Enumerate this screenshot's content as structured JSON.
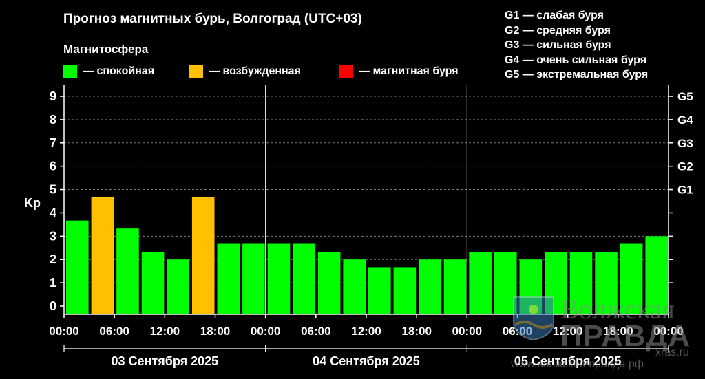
{
  "header": {
    "title": "Прогноз магнитных бурь, Волгоград (UTC+03)",
    "subtitle": "Магнитосфера"
  },
  "legend": [
    {
      "label": "— спокойная",
      "color": "#00ff00"
    },
    {
      "label": "— возбужденная",
      "color": "#ffc000"
    },
    {
      "label": "— магнитная буря",
      "color": "#ff0000"
    }
  ],
  "g_scale": [
    "G1 — слабая буря",
    "G2 — средняя буря",
    "G3 — сильная буря",
    "G4 — очень сильная буря",
    "G5 — экстремальная буря"
  ],
  "watermark": {
    "title": "Волжская",
    "brand": "ПРАВДА",
    "site": "www.волжская-правда.рф",
    "site2": "xras.ru"
  },
  "chart_data": {
    "type": "bar",
    "ylabel": "Kp",
    "ylim": [
      0,
      9
    ],
    "yticks": [
      0,
      1,
      2,
      3,
      4,
      5,
      6,
      7,
      8,
      9
    ],
    "right_ticks": [
      {
        "value": 5,
        "label": "G1"
      },
      {
        "value": 6,
        "label": "G2"
      },
      {
        "value": 7,
        "label": "G3"
      },
      {
        "value": 8,
        "label": "G4"
      },
      {
        "value": 9,
        "label": "G5"
      }
    ],
    "x_tick_labels": [
      "00:00",
      "06:00",
      "12:00",
      "18:00",
      "00:00",
      "06:00",
      "12:00",
      "18:00",
      "00:00",
      "06:00",
      "12:00",
      "18:00",
      "00:00"
    ],
    "days": [
      "03 Сентября 2025",
      "04 Сентября 2025",
      "05 Сентября 2025"
    ],
    "values": [
      3.67,
      4.67,
      3.33,
      2.33,
      2.0,
      4.67,
      2.67,
      2.67,
      2.67,
      2.67,
      2.33,
      2.0,
      1.67,
      1.67,
      2.0,
      2.0,
      2.33,
      2.33,
      2.0,
      2.33,
      2.33,
      2.33,
      2.67,
      3.0
    ],
    "colors": [
      "#00ff00",
      "#ffc000",
      "#00ff00",
      "#00ff00",
      "#00ff00",
      "#ffc000",
      "#00ff00",
      "#00ff00",
      "#00ff00",
      "#00ff00",
      "#00ff00",
      "#00ff00",
      "#00ff00",
      "#00ff00",
      "#00ff00",
      "#00ff00",
      "#00ff00",
      "#00ff00",
      "#00ff00",
      "#00ff00",
      "#00ff00",
      "#00ff00",
      "#00ff00",
      "#00ff00"
    ],
    "grid": true
  }
}
